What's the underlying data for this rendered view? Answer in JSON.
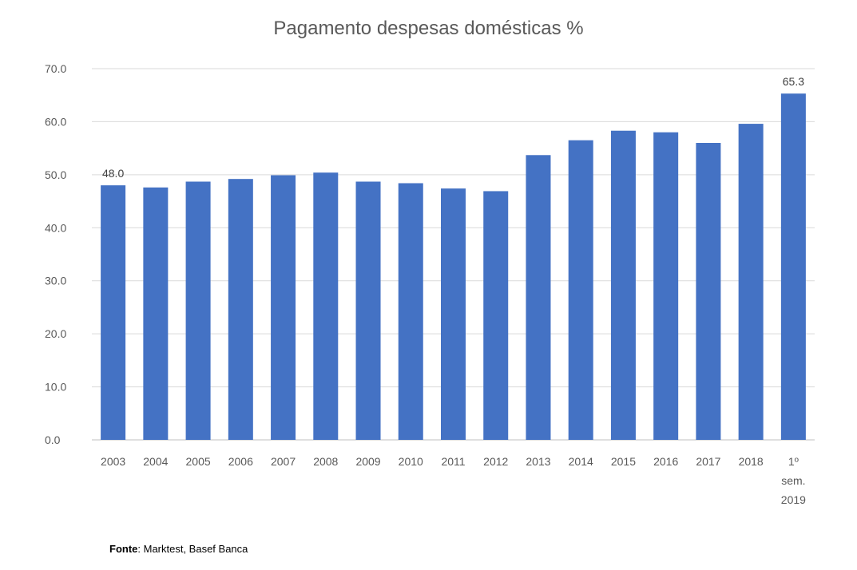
{
  "chart_data": {
    "type": "bar",
    "title": "Pagamento despesas domésticas %",
    "categories": [
      "2003",
      "2004",
      "2005",
      "2006",
      "2007",
      "2008",
      "2009",
      "2010",
      "2011",
      "2012",
      "2013",
      "2014",
      "2015",
      "2016",
      "2017",
      "2018",
      "1º sem. 2019"
    ],
    "category_lines": [
      [
        "2003"
      ],
      [
        "2004"
      ],
      [
        "2005"
      ],
      [
        "2006"
      ],
      [
        "2007"
      ],
      [
        "2008"
      ],
      [
        "2009"
      ],
      [
        "2010"
      ],
      [
        "2011"
      ],
      [
        "2012"
      ],
      [
        "2013"
      ],
      [
        "2014"
      ],
      [
        "2015"
      ],
      [
        "2016"
      ],
      [
        "2017"
      ],
      [
        "2018"
      ],
      [
        "1º",
        "sem.",
        "2019"
      ]
    ],
    "values": [
      48.0,
      47.6,
      48.7,
      49.2,
      49.9,
      50.4,
      48.7,
      48.4,
      47.4,
      46.9,
      53.7,
      56.5,
      58.3,
      58.0,
      56.0,
      59.6,
      65.3
    ],
    "data_labels": [
      {
        "index": 0,
        "text": "48.0"
      },
      {
        "index": 16,
        "text": "65.3"
      }
    ],
    "ylim": [
      0,
      70
    ],
    "yticks": [
      "0.0",
      "10.0",
      "20.0",
      "30.0",
      "40.0",
      "50.0",
      "60.0",
      "70.0"
    ],
    "xlabel": "",
    "ylabel": "",
    "grid": true,
    "bar_color": "#4472C4"
  },
  "source": {
    "label": "Fonte",
    "text": ": Marktest, Basef Banca"
  }
}
